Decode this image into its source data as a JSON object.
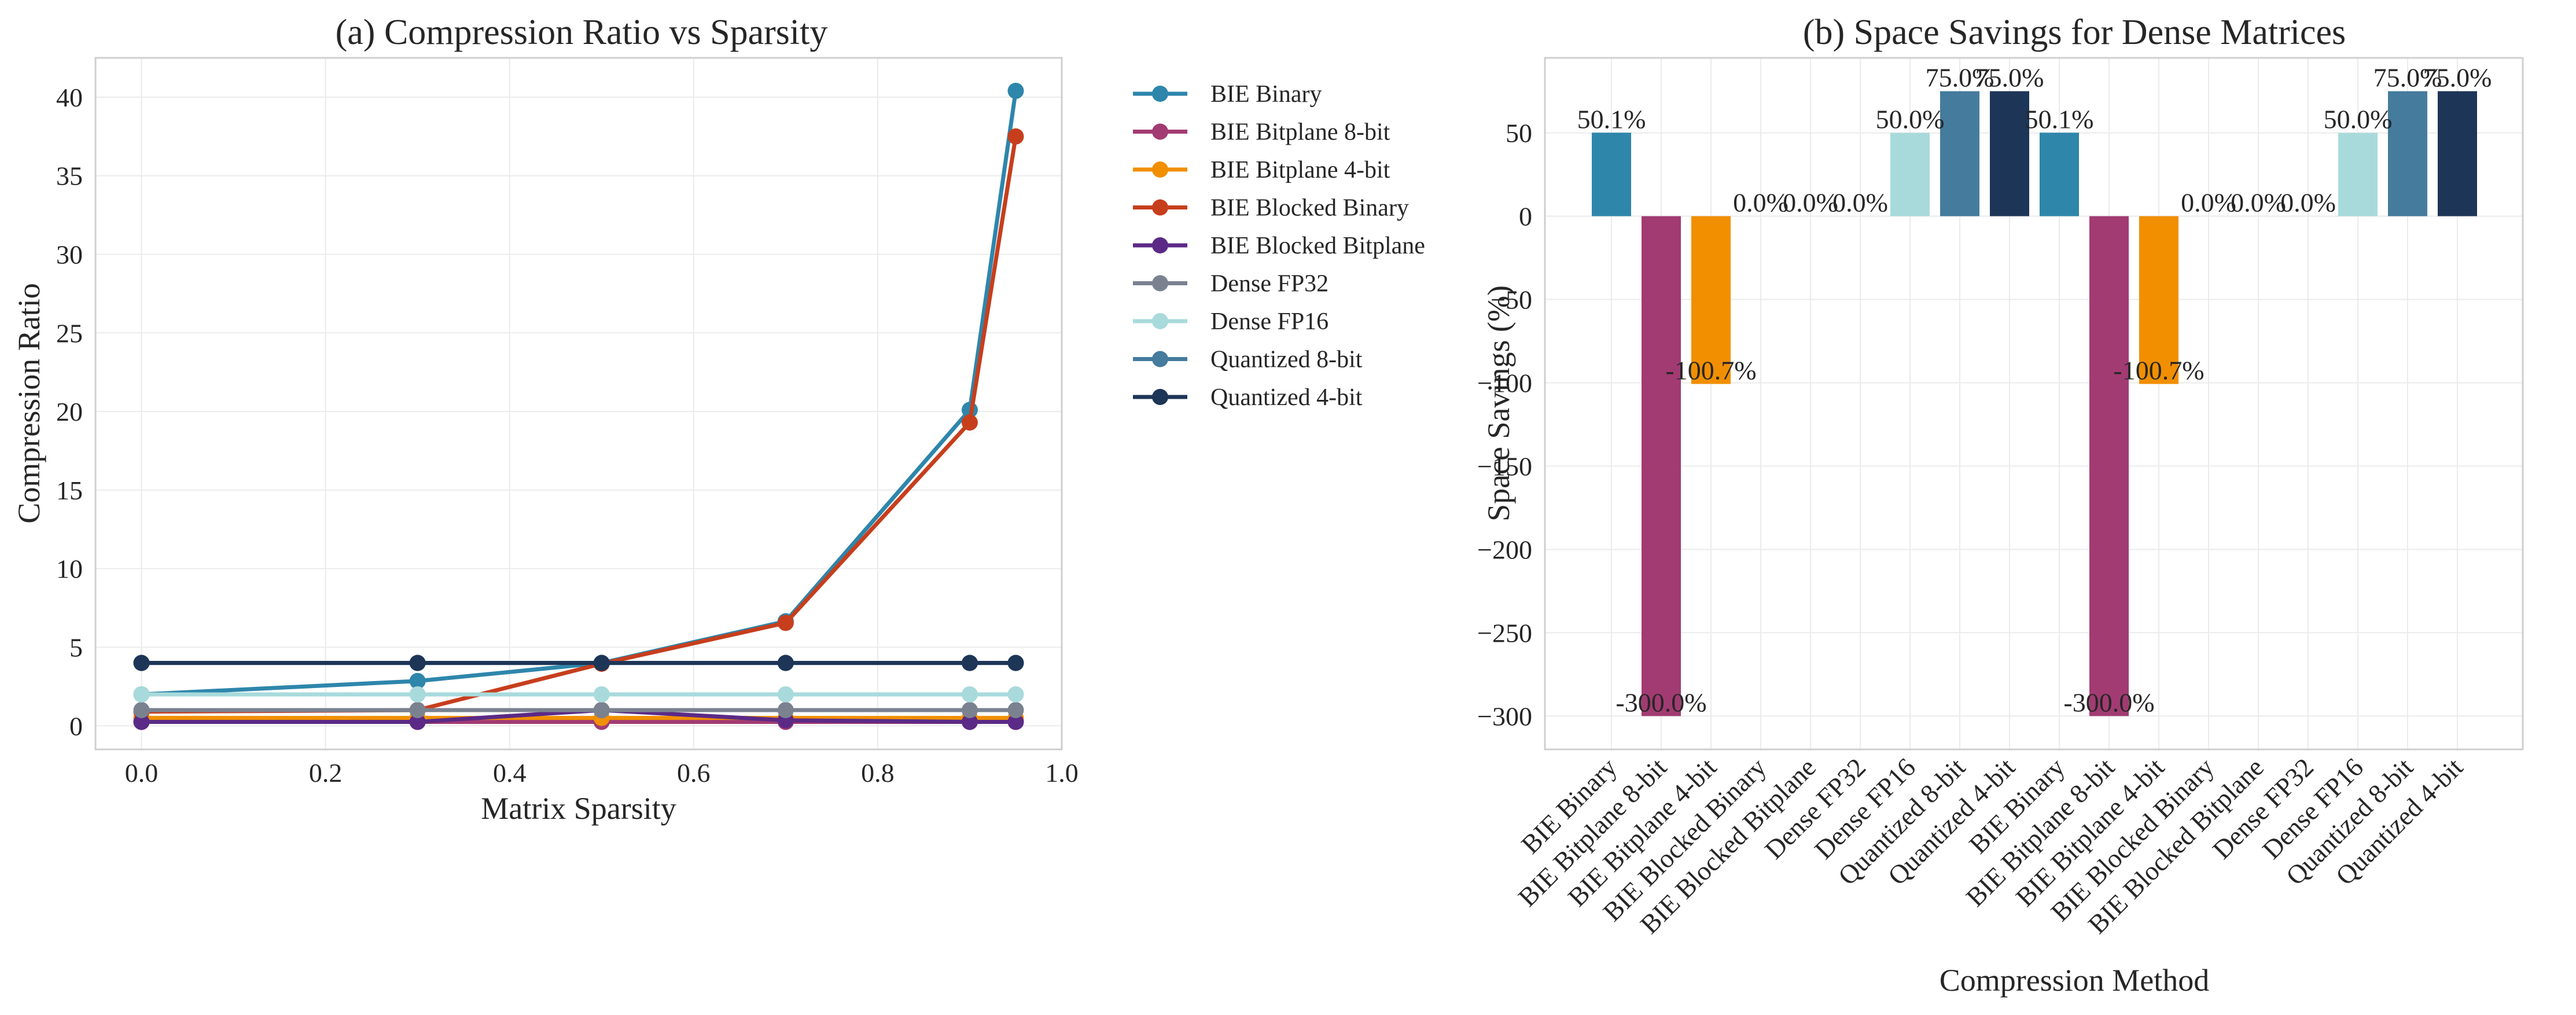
{
  "colors": {
    "BIE Binary": "#2e86ab",
    "BIE Bitplane 8-bit": "#a23b72",
    "BIE Bitplane 4-bit": "#f18f01",
    "BIE Blocked Binary": "#c73e1d",
    "BIE Blocked Bitplane": "#5b2a86",
    "Dense FP32": "#7a8290",
    "Dense FP16": "#a8dadc",
    "Quantized 8-bit": "#457b9d",
    "Quantized 4-bit": "#1d3557"
  },
  "chart_data": [
    {
      "type": "line",
      "title": "(a) Compression Ratio vs Sparsity",
      "xlabel": "Matrix Sparsity",
      "ylabel": "Compression Ratio",
      "xlim": [
        -0.05,
        1.0
      ],
      "ylim": [
        -1.5,
        42.5
      ],
      "xticks": [
        0.0,
        0.2,
        0.4,
        0.6,
        0.8,
        1.0
      ],
      "xtick_labels": [
        "0.0",
        "0.2",
        "0.4",
        "0.6",
        "0.8",
        "1.0"
      ],
      "yticks": [
        0,
        5,
        10,
        15,
        20,
        25,
        30,
        35,
        40
      ],
      "ytick_labels": [
        "0",
        "5",
        "10",
        "15",
        "20",
        "25",
        "30",
        "35",
        "40"
      ],
      "grid": true,
      "legend_position": "outside-right",
      "x": [
        0.0,
        0.3,
        0.5,
        0.7,
        0.9,
        0.95
      ],
      "series": [
        {
          "name": "BIE Binary",
          "values": [
            2.0,
            2.85,
            4.0,
            6.65,
            20.1,
            40.4
          ]
        },
        {
          "name": "BIE Bitplane 8-bit",
          "values": [
            0.25,
            0.25,
            0.25,
            0.25,
            0.25,
            0.25
          ]
        },
        {
          "name": "BIE Bitplane 4-bit",
          "values": [
            0.5,
            0.5,
            0.5,
            0.5,
            0.5,
            0.5
          ]
        },
        {
          "name": "BIE Blocked Binary",
          "values": [
            0.9,
            1.0,
            3.95,
            6.55,
            19.3,
            37.5
          ]
        },
        {
          "name": "BIE Blocked Bitplane",
          "values": [
            0.25,
            0.25,
            1.0,
            0.35,
            0.25,
            0.25
          ]
        },
        {
          "name": "Dense FP32",
          "values": [
            1.0,
            1.0,
            1.0,
            1.0,
            1.0,
            1.0
          ]
        },
        {
          "name": "Dense FP16",
          "values": [
            2.0,
            2.0,
            2.0,
            2.0,
            2.0,
            2.0
          ]
        },
        {
          "name": "Quantized 8-bit",
          "values": [
            4.0,
            4.0,
            4.0,
            4.0,
            4.0,
            4.0
          ]
        },
        {
          "name": "Quantized 4-bit",
          "values": [
            4.0,
            4.0,
            4.0,
            4.0,
            4.0,
            4.0
          ]
        }
      ]
    },
    {
      "type": "bar",
      "title": "(b) Space Savings for Dense Matrices",
      "xlabel": "Compression Method",
      "ylabel": "Space Savings (%)",
      "ylim": [
        -320,
        95
      ],
      "yticks": [
        50,
        0,
        -50,
        -100,
        -150,
        -200,
        -250,
        -300
      ],
      "ytick_labels": [
        "50",
        "0",
        "−50",
        "−100",
        "−150",
        "−200",
        "−250",
        "−300"
      ],
      "grid": true,
      "categories": [
        "BIE Binary",
        "BIE Bitplane 8-bit",
        "BIE Bitplane 4-bit",
        "BIE Blocked Binary",
        "BIE Blocked Bitplane",
        "Dense FP32",
        "Dense FP16",
        "Quantized 8-bit",
        "Quantized 4-bit",
        "BIE Binary",
        "BIE Bitplane 8-bit",
        "BIE Bitplane 4-bit",
        "BIE Blocked Binary",
        "BIE Blocked Bitplane",
        "Dense FP32",
        "Dense FP16",
        "Quantized 8-bit",
        "Quantized 4-bit"
      ],
      "values": [
        50.1,
        -300.0,
        -100.7,
        0.0,
        0.0,
        0.0,
        50.0,
        75.0,
        75.0,
        50.1,
        -300.0,
        -100.7,
        0.0,
        0.0,
        0.0,
        50.0,
        75.0,
        75.0
      ],
      "data_labels": [
        "50.1%",
        "-300.0%",
        "-100.7%",
        "0.0%",
        "0.0%",
        "0.0%",
        "50.0%",
        "75.0%",
        "75.0%",
        "50.1%",
        "-300.0%",
        "-100.7%",
        "0.0%",
        "0.0%",
        "0.0%",
        "50.0%",
        "75.0%",
        "75.0%"
      ]
    }
  ]
}
